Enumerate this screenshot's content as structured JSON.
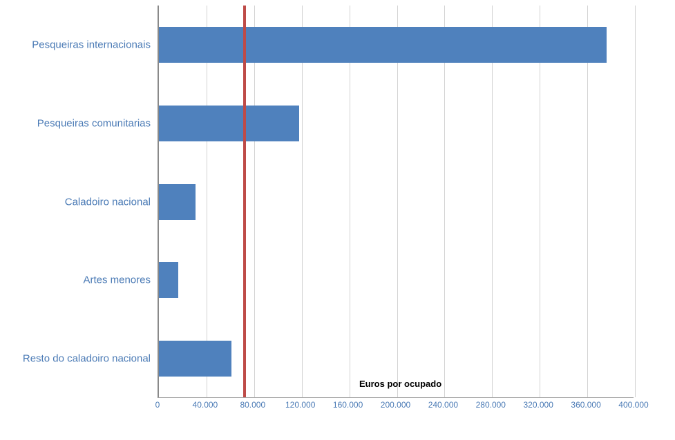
{
  "chart_data": {
    "type": "bar",
    "orientation": "horizontal",
    "title": "",
    "xlabel": "",
    "ylabel": "",
    "categories": [
      "Pesqueiras internacionais",
      "Pesqueiras comunitarias",
      "Caladoiro nacional",
      "Artes menores",
      "Resto do caladoiro nacional"
    ],
    "values": [
      376000,
      118000,
      31000,
      16000,
      61000
    ],
    "xlim": [
      0,
      400000
    ],
    "x_ticks": [
      0,
      40000,
      80000,
      120000,
      160000,
      200000,
      240000,
      280000,
      320000,
      360000,
      400000
    ],
    "x_tick_labels": [
      "0",
      "40.000",
      "80.000",
      "120.000",
      "160.000",
      "200.000",
      "240.000",
      "280.000",
      "320.000",
      "360.000",
      "400.000"
    ],
    "grid": true,
    "legend": "none",
    "bar_color": "#4f81bd",
    "reference_line": {
      "value": 72000,
      "color": "#be4b48"
    },
    "annotation": {
      "text": "Euros por ocupado",
      "x": 170000
    }
  }
}
